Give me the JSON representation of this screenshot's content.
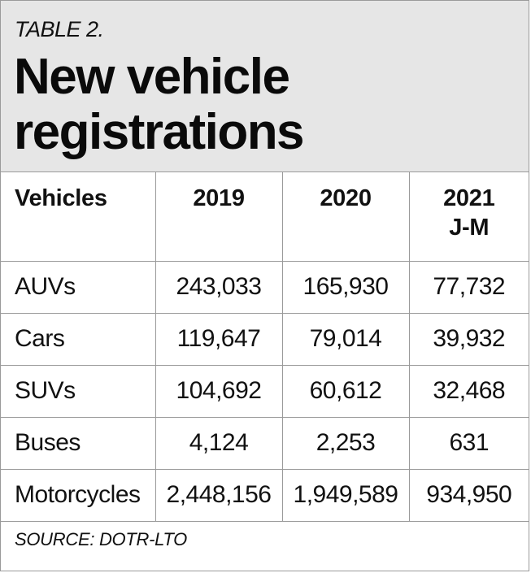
{
  "header": {
    "label": "TABLE 2.",
    "title": "New vehicle registrations"
  },
  "table": {
    "columns": [
      {
        "label": "Vehicles",
        "sublabel": ""
      },
      {
        "label": "2019",
        "sublabel": ""
      },
      {
        "label": "2020",
        "sublabel": ""
      },
      {
        "label": "2021",
        "sublabel": "J-M"
      }
    ],
    "rows": [
      {
        "vehicle": "AUVs",
        "y2019": "243,033",
        "y2020": "165,930",
        "y2021": "77,732"
      },
      {
        "vehicle": "Cars",
        "y2019": "119,647",
        "y2020": "79,014",
        "y2021": "39,932"
      },
      {
        "vehicle": "SUVs",
        "y2019": "104,692",
        "y2020": "60,612",
        "y2021": "32,468"
      },
      {
        "vehicle": "Buses",
        "y2019": "4,124",
        "y2020": "2,253",
        "y2021": "631"
      },
      {
        "vehicle": "Motorcycles",
        "y2019": "2,448,156",
        "y2020": "1,949,589",
        "y2021": "934,950"
      }
    ]
  },
  "footer": {
    "source": "SOURCE: DOTR-LTO"
  },
  "colors": {
    "header_background": "#e6e6e6",
    "border": "#9a9a9a",
    "text": "#111111"
  }
}
